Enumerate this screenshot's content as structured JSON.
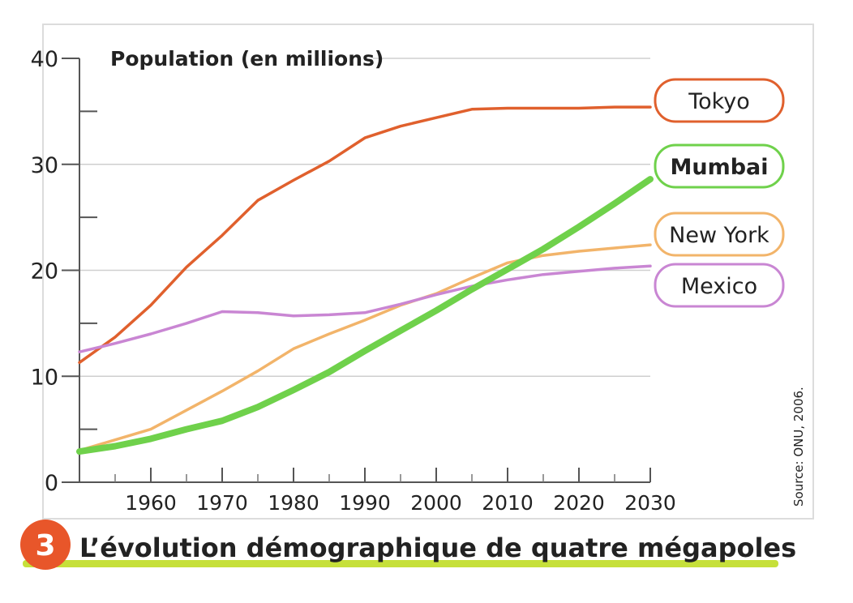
{
  "chart_data": {
    "type": "line",
    "ylabel": "Population (en millions)",
    "ylim": [
      0,
      40
    ],
    "xlim": [
      1950,
      2030
    ],
    "yticks": [
      0,
      10,
      20,
      30,
      40
    ],
    "xticks": [
      1960,
      1970,
      1980,
      1990,
      2000,
      2010,
      2020,
      2030
    ],
    "grid": true,
    "series": [
      {
        "name": "Tokyo",
        "color": "#e0602d",
        "x": [
          1950,
          1955,
          1960,
          1965,
          1970,
          1975,
          1980,
          1985,
          1990,
          1995,
          2000,
          2005,
          2010,
          2015,
          2020,
          2025,
          2030
        ],
        "y": [
          11.3,
          13.7,
          16.7,
          20.3,
          23.3,
          26.6,
          28.5,
          30.3,
          32.5,
          33.6,
          34.4,
          35.2,
          35.3,
          35.3,
          35.3,
          35.4,
          35.4
        ]
      },
      {
        "name": "Mumbai",
        "color": "#6fd14b",
        "x": [
          1950,
          1955,
          1960,
          1965,
          1970,
          1975,
          1980,
          1985,
          1990,
          1995,
          2000,
          2005,
          2010,
          2015,
          2020,
          2025,
          2030
        ],
        "y": [
          2.9,
          3.4,
          4.1,
          5.0,
          5.8,
          7.1,
          8.7,
          10.4,
          12.4,
          14.3,
          16.2,
          18.2,
          20.1,
          22.0,
          24.1,
          26.3,
          28.6
        ]
      },
      {
        "name": "New York",
        "color": "#f2b46a",
        "x": [
          1950,
          1955,
          1960,
          1965,
          1970,
          1975,
          1980,
          1985,
          1990,
          1995,
          2000,
          2005,
          2010,
          2015,
          2020,
          2025,
          2030
        ],
        "y": [
          3.0,
          4.0,
          5.0,
          6.8,
          8.6,
          10.5,
          12.6,
          14.0,
          15.3,
          16.7,
          17.8,
          19.3,
          20.7,
          21.4,
          21.8,
          22.1,
          22.4
        ]
      },
      {
        "name": "Mexico",
        "color": "#c986d3",
        "x": [
          1950,
          1955,
          1960,
          1965,
          1970,
          1975,
          1980,
          1985,
          1990,
          1995,
          2000,
          2005,
          2010,
          2015,
          2020,
          2025,
          2030
        ],
        "y": [
          12.3,
          13.1,
          14.0,
          15.0,
          16.1,
          16.0,
          15.7,
          15.8,
          16.0,
          16.8,
          17.7,
          18.5,
          19.1,
          19.6,
          19.9,
          20.2,
          20.4
        ]
      }
    ]
  },
  "source_note": "Source: ONU, 2006.",
  "caption": {
    "number": "3",
    "title": "L’évolution démographique de quatre mégapoles",
    "badge_color": "#e8562a",
    "underline_color": "#c6e03a"
  }
}
